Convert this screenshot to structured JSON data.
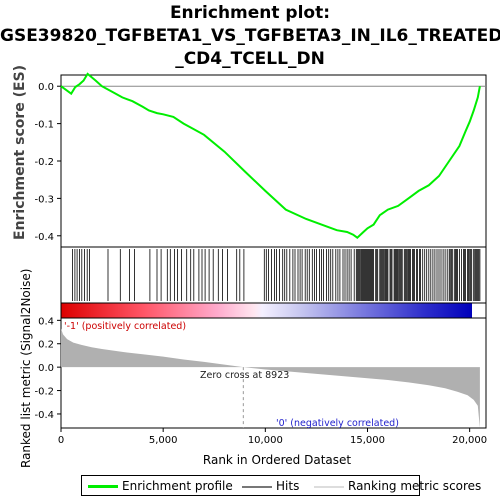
{
  "title_lines": [
    "Enrichment plot:",
    "GSE39820_TGFBETA1_VS_TGFBETA3_IN_IL6_TREATED",
    "_CD4_TCELL_DN"
  ],
  "colors": {
    "profile": "#00ee00",
    "hits": "#000000",
    "metric_fill": "#b0b0b0",
    "zero_line": "#888888"
  },
  "legend": {
    "profile": "Enrichment profile",
    "hits": "Hits",
    "metric": "Ranking metric scores"
  },
  "chart_data": [
    {
      "type": "line",
      "name": "enrichment-score",
      "ylabel": "Enrichment score (ES)",
      "ylim": [
        -0.43,
        0.03
      ],
      "yticks": [
        0.0,
        -0.1,
        -0.2,
        -0.3,
        -0.4
      ],
      "ytick_labels": [
        "0.0",
        "-0.1",
        "-0.2",
        "-0.3",
        "-0.4"
      ],
      "xlim": [
        0,
        20800
      ],
      "series": [
        {
          "x": [
            0,
            500,
            700,
            900,
            1100,
            1300,
            1700,
            2000,
            2500,
            3000,
            3500,
            4000,
            4300,
            4700,
            5000,
            5500,
            6000,
            7000,
            8000,
            9000,
            10000,
            11000,
            12000,
            12500,
            13000,
            13500,
            14000,
            14300,
            14500,
            14800,
            15000,
            15300,
            15600,
            16000,
            16500,
            17000,
            17500,
            18000,
            18500,
            19000,
            19500,
            19800,
            20000,
            20200,
            20400,
            20500
          ],
          "y": [
            0.0,
            -0.02,
            -0.002,
            0.005,
            0.015,
            0.033,
            0.015,
            0.0,
            -0.015,
            -0.03,
            -0.04,
            -0.055,
            -0.065,
            -0.072,
            -0.075,
            -0.082,
            -0.1,
            -0.13,
            -0.175,
            -0.228,
            -0.28,
            -0.33,
            -0.355,
            -0.365,
            -0.375,
            -0.385,
            -0.39,
            -0.397,
            -0.405,
            -0.39,
            -0.38,
            -0.37,
            -0.345,
            -0.33,
            -0.32,
            -0.3,
            -0.28,
            -0.265,
            -0.24,
            -0.2,
            -0.16,
            -0.12,
            -0.095,
            -0.065,
            -0.03,
            0.0
          ]
        }
      ]
    },
    {
      "type": "heatmap",
      "name": "hit-positions",
      "hits": [
        560,
        680,
        790,
        900,
        1020,
        1150,
        1280,
        1390,
        2300,
        2900,
        3350,
        3600,
        4350,
        4700,
        4900,
        5200,
        5350,
        5550,
        5700,
        5900,
        6150,
        6350,
        6500,
        6750,
        6900,
        7050,
        7250,
        7450,
        7700,
        7900,
        8150,
        8600,
        8750,
        8950,
        9950,
        10050,
        10150,
        10300,
        10450,
        10550,
        10700,
        10850,
        10950,
        11050,
        11200,
        11350,
        11450,
        11600,
        11700,
        11800,
        11950,
        12050,
        12150,
        12300,
        12400,
        12500,
        12650,
        12750,
        12850,
        13000,
        13100,
        13200,
        13300,
        13450,
        13550,
        13650,
        13800,
        13900,
        14000,
        14100,
        14200,
        14350,
        14450,
        14500,
        14550,
        14600,
        14650,
        14700,
        14750,
        14800,
        14850,
        14900,
        14950,
        15000,
        15050,
        15100,
        15150,
        15200,
        15250,
        15300,
        15400,
        15450,
        15500,
        15600,
        15650,
        15700,
        15750,
        15800,
        15850,
        15900,
        15950,
        16000,
        16100,
        16150,
        16200,
        16300,
        16350,
        16400,
        16450,
        16500,
        16550,
        16600,
        16650,
        16700,
        16800,
        16850,
        16900,
        16950,
        17000,
        17050,
        17100,
        17200,
        17250,
        17300,
        17400,
        17450,
        17550,
        17600,
        17700,
        17800,
        17900,
        18000,
        18100,
        18200,
        18300,
        18400,
        18500,
        18600,
        18700,
        18800,
        18900,
        19000,
        19050,
        19100,
        19150,
        19250,
        19300,
        19350,
        19400,
        19500,
        19600,
        19700,
        19750,
        19800,
        19900,
        19950,
        20000,
        20050,
        20100,
        20200,
        20250,
        20300,
        20350,
        20400,
        20450,
        20500
      ]
    },
    {
      "type": "area",
      "name": "ranked-list-metric",
      "ylabel": "Ranked list metric (Signal2Noise)",
      "xlabel": "Rank in Ordered Dataset",
      "ylim": [
        -0.52,
        0.42
      ],
      "yticks": [
        0.4,
        0.2,
        0.0,
        -0.2,
        -0.4
      ],
      "ytick_labels": [
        "0.4",
        "0.2",
        "0.0",
        "-0.2",
        "-0.4"
      ],
      "xticks": [
        0,
        5000,
        10000,
        15000,
        20000
      ],
      "xtick_labels": [
        "0",
        "5,000",
        "10,000",
        "15,000",
        "20,000"
      ],
      "xlim": [
        0,
        20800
      ],
      "zero_cross": 8923,
      "series": [
        {
          "x": [
            0,
            100,
            300,
            600,
            1000,
            1500,
            2000,
            3000,
            4000,
            5000,
            6000,
            7000,
            8000,
            8923,
            10000,
            11000,
            12000,
            13000,
            14000,
            15000,
            16000,
            17000,
            18000,
            18800,
            19400,
            19900,
            20200,
            20400,
            20500
          ],
          "y": [
            0.33,
            0.28,
            0.24,
            0.21,
            0.19,
            0.17,
            0.155,
            0.13,
            0.11,
            0.09,
            0.065,
            0.045,
            0.022,
            0.0,
            -0.02,
            -0.035,
            -0.05,
            -0.065,
            -0.08,
            -0.095,
            -0.11,
            -0.13,
            -0.155,
            -0.18,
            -0.21,
            -0.24,
            -0.28,
            -0.33,
            -0.52
          ]
        }
      ]
    }
  ],
  "annotations": {
    "pos_label": "'-1' (positively correlated)",
    "neg_label": "'0' (negatively correlated)",
    "zero_cross_label": "Zero cross at 8923"
  }
}
